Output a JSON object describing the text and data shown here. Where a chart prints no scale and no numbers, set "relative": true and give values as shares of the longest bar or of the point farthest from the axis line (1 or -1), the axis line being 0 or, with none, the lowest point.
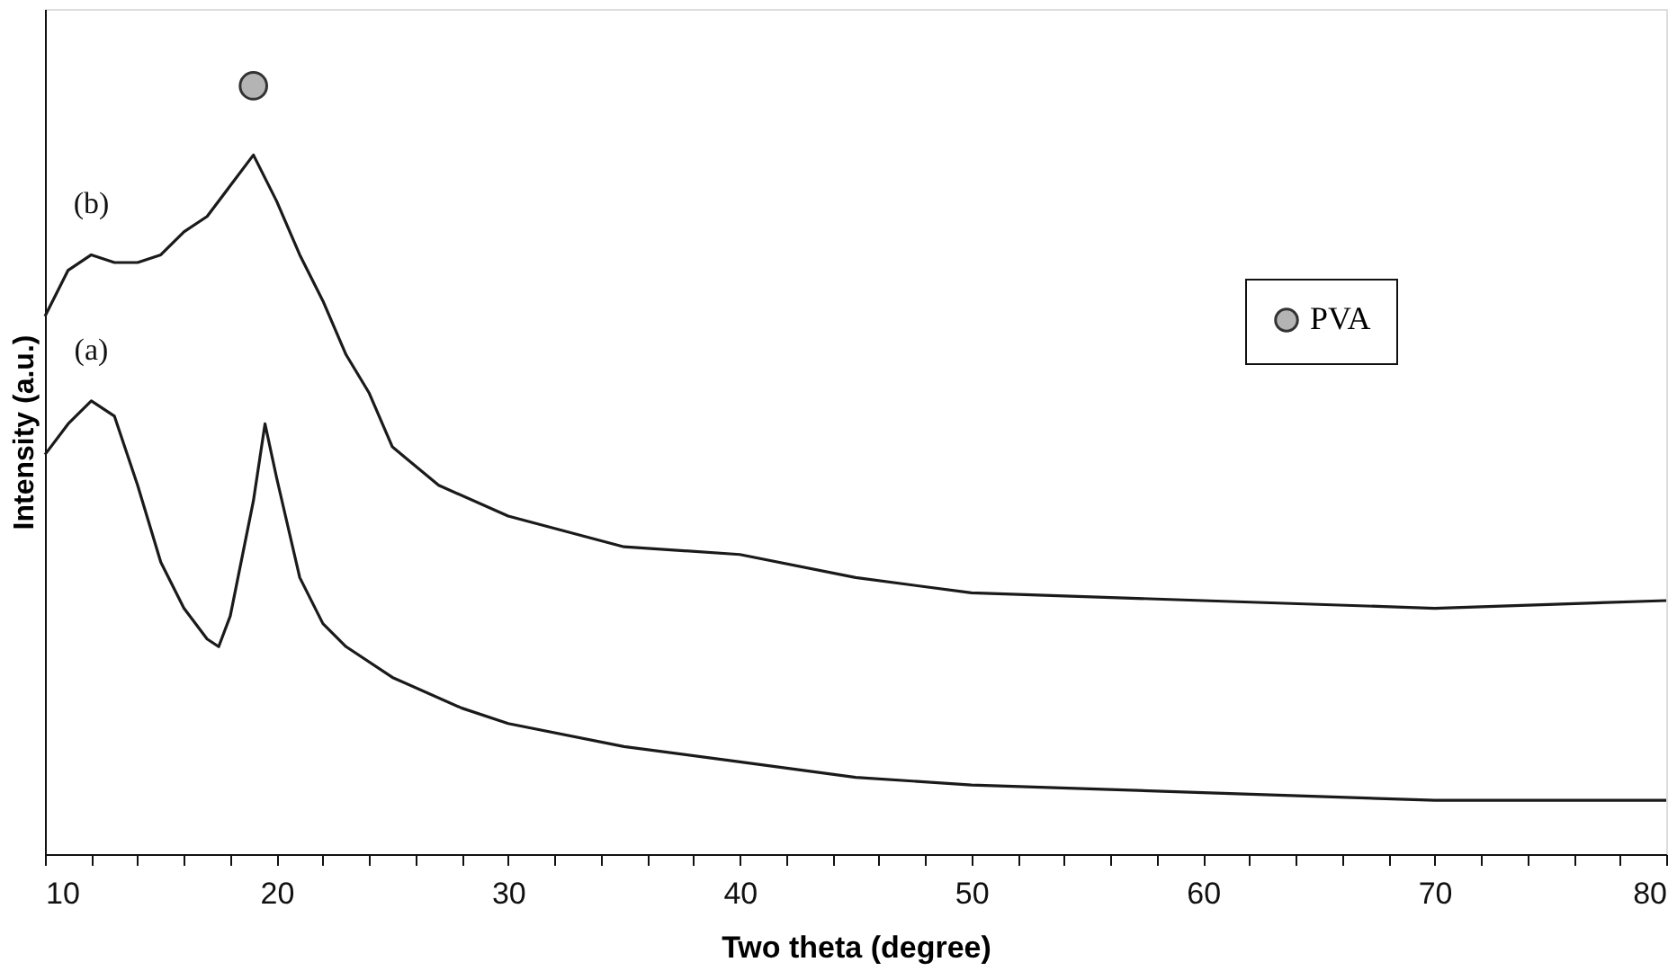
{
  "chart_data": {
    "type": "line",
    "xlabel": "Two theta (degree)",
    "ylabel": "Intensity (a.u.)",
    "relative": true,
    "legend": "top right",
    "xlim": [
      10,
      80
    ],
    "xticks": [
      10,
      {
        "value": 12,
        "label": null
      },
      {
        "value": 14,
        "label": null
      },
      {
        "value": 16,
        "label": null
      },
      {
        "value": 18,
        "label": null
      },
      20,
      {
        "value": 22,
        "label": null
      },
      {
        "value": 24,
        "label": null
      },
      {
        "value": 26,
        "label": null
      },
      {
        "value": 28,
        "label": null
      },
      30,
      {
        "value": 32,
        "label": null
      },
      {
        "value": 34,
        "label": null
      },
      {
        "value": 36,
        "label": null
      },
      {
        "value": 38,
        "label": null
      },
      40,
      {
        "value": 42,
        "label": null
      },
      {
        "value": 44,
        "label": null
      },
      {
        "value": 46,
        "label": null
      },
      {
        "value": 48,
        "label": null
      },
      50,
      {
        "value": 52,
        "label": null
      },
      {
        "value": 54,
        "label": null
      },
      {
        "value": 56,
        "label": null
      },
      {
        "value": 58,
        "label": null
      },
      60,
      {
        "value": 62,
        "label": null
      },
      {
        "value": 64,
        "label": null
      },
      {
        "value": 66,
        "label": null
      },
      {
        "value": 68,
        "label": null
      },
      70,
      {
        "value": 72,
        "label": null
      },
      {
        "value": 74,
        "label": null
      },
      {
        "value": 76,
        "label": null
      },
      {
        "value": 78,
        "label": null
      },
      80
    ],
    "series": [
      {
        "name": "(a)",
        "color": "#1a1a1a",
        "x": [
          10,
          11,
          12,
          13,
          14,
          15,
          16,
          17,
          17.5,
          18,
          19,
          19.5,
          20,
          21,
          22,
          23,
          25,
          28,
          30,
          35,
          40,
          45,
          50,
          60,
          70,
          80
        ],
        "values": [
          0.52,
          0.56,
          0.59,
          0.57,
          0.48,
          0.38,
          0.32,
          0.28,
          0.27,
          0.31,
          0.46,
          0.56,
          0.49,
          0.36,
          0.3,
          0.27,
          0.23,
          0.19,
          0.17,
          0.14,
          0.12,
          0.1,
          0.09,
          0.08,
          0.07,
          0.07
        ]
      },
      {
        "name": "(b)",
        "color": "#1a1a1a",
        "x": [
          10,
          11,
          12,
          13,
          14,
          15,
          16,
          17,
          18,
          19,
          20,
          21,
          22,
          23,
          24,
          25,
          27,
          30,
          35,
          40,
          45,
          50,
          60,
          70,
          80
        ],
        "values": [
          0.7,
          0.76,
          0.78,
          0.77,
          0.77,
          0.78,
          0.81,
          0.83,
          0.87,
          0.91,
          0.85,
          0.78,
          0.72,
          0.65,
          0.6,
          0.53,
          0.48,
          0.44,
          0.4,
          0.39,
          0.36,
          0.34,
          0.33,
          0.32,
          0.33
        ]
      },
      {
        "name": "PVA",
        "type": "scatter",
        "marker": "circle",
        "color": "#b4b4b4",
        "x": [
          19
        ],
        "values": [
          1.0
        ]
      }
    ]
  }
}
